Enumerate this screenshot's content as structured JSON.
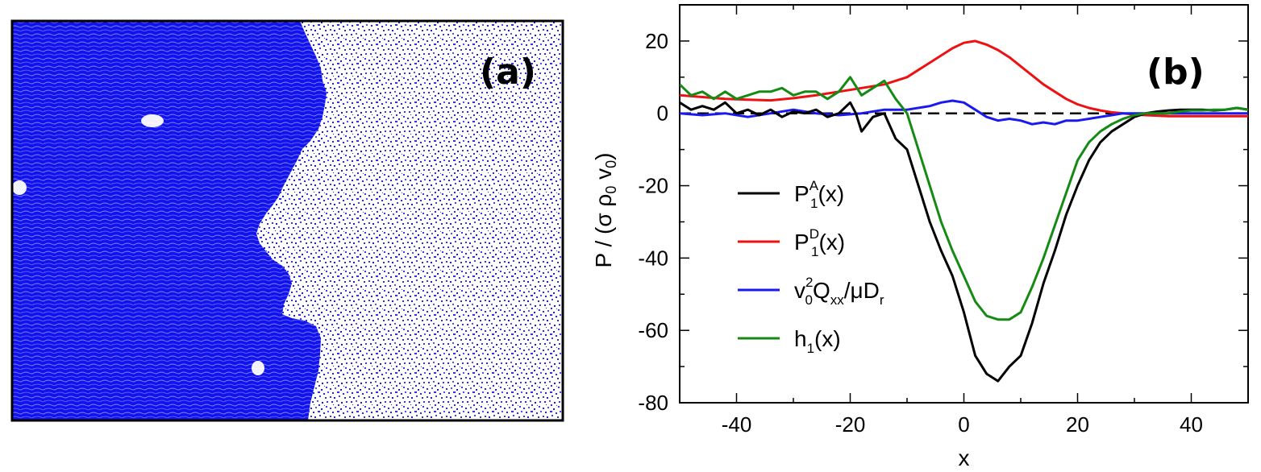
{
  "panel_a": {
    "label": "(a)",
    "dense_color": "#1010ee",
    "background_color": "#ffffff"
  },
  "panel_b": {
    "label": "(b)"
  },
  "chart_data": {
    "type": "line",
    "xlabel": "x",
    "ylabel": "P / (σ ρ0 v0)",
    "ylabel_parts": {
      "main": "P / (σ ρ",
      "sub1": "0",
      "mid": " v",
      "sub2": "0",
      "end": ")"
    },
    "xlim": [
      -50,
      50
    ],
    "ylim": [
      -80,
      30
    ],
    "x_ticks": [
      -40,
      -20,
      0,
      20,
      40
    ],
    "y_ticks": [
      20,
      0,
      -20,
      -40,
      -60,
      -80
    ],
    "x_tick_labels": [
      "-40",
      "-20",
      "0",
      "20",
      "40"
    ],
    "y_tick_labels": [
      "20",
      "0",
      "-20",
      "-40",
      "-60",
      "-80"
    ],
    "reference_line": {
      "y": 0,
      "style": "dashed",
      "color": "#000000"
    },
    "legend": {
      "position": "center-left"
    },
    "series": [
      {
        "name": "P1A(x)",
        "legend": {
          "base": "P",
          "sub": "1",
          "sup": "A",
          "tail": "(x)"
        },
        "color": "#000000",
        "x": [
          -50,
          -48,
          -46,
          -44,
          -42,
          -40,
          -38,
          -36,
          -34,
          -32,
          -30,
          -28,
          -26,
          -24,
          -22,
          -20,
          -19,
          -18,
          -16,
          -14,
          -12,
          -10,
          -8,
          -6,
          -4,
          -2,
          0,
          2,
          4,
          6,
          8,
          10,
          12,
          14,
          16,
          18,
          20,
          22,
          24,
          26,
          28,
          30,
          32,
          34,
          36,
          38,
          40,
          42,
          44,
          46,
          48,
          50
        ],
        "y": [
          3,
          1,
          2,
          1,
          3,
          0,
          1,
          -0.5,
          1,
          -1,
          0.5,
          0,
          1,
          -1,
          0,
          3,
          0,
          -5,
          -1,
          0,
          -7,
          -10,
          -20,
          -30,
          -38,
          -45,
          -55,
          -67,
          -72,
          -74,
          -70,
          -67,
          -58,
          -47,
          -38,
          -28,
          -20,
          -13,
          -8,
          -5,
          -3,
          -1,
          0,
          0.5,
          0.8,
          1,
          1,
          1,
          0.8,
          1,
          1.5,
          1
        ]
      },
      {
        "name": "P1D(x)",
        "legend": {
          "base": "P",
          "sub": "1",
          "sup": "D",
          "tail": "(x)"
        },
        "color": "#ee1111",
        "x": [
          -50,
          -46,
          -42,
          -38,
          -34,
          -30,
          -26,
          -22,
          -18,
          -14,
          -10,
          -8,
          -6,
          -4,
          -2,
          0,
          2,
          4,
          6,
          8,
          10,
          12,
          14,
          16,
          18,
          20,
          22,
          24,
          26,
          28,
          30,
          32,
          36,
          40,
          45,
          50
        ],
        "y": [
          5,
          4.5,
          4,
          3.8,
          3.6,
          4.2,
          5,
          6,
          7,
          8,
          10,
          12,
          14,
          16,
          18,
          19.5,
          20,
          19,
          17.5,
          15.5,
          13,
          10.5,
          8,
          6,
          4,
          2.5,
          1.5,
          0.8,
          0.3,
          0,
          -0.3,
          -0.5,
          -0.8,
          -0.8,
          -0.8,
          -0.8
        ]
      },
      {
        "name": "v0²Qxx/μDr",
        "legend": {
          "base": "v",
          "sub": "0",
          "sup": "2",
          "tail": "Q",
          "sub2": "xx",
          "tail2": "/μD",
          "sub3": "r"
        },
        "color": "#1a1aee",
        "x": [
          -50,
          -46,
          -42,
          -38,
          -34,
          -30,
          -26,
          -22,
          -18,
          -14,
          -10,
          -6,
          -4,
          -2,
          0,
          2,
          4,
          6,
          8,
          10,
          12,
          14,
          16,
          18,
          20,
          22,
          24,
          26,
          28,
          30,
          32,
          36,
          40,
          44,
          48,
          50
        ],
        "y": [
          0,
          -0.5,
          0,
          -1,
          0,
          1,
          0,
          -0.5,
          0,
          1,
          1,
          2,
          3,
          3.5,
          3,
          1,
          -1,
          -2,
          -1.5,
          -2,
          -3,
          -2.5,
          -3,
          -2,
          -2,
          -1.5,
          -1,
          -0.5,
          0,
          0,
          0,
          0,
          0,
          0,
          0,
          0
        ]
      },
      {
        "name": "h1(x)",
        "legend": {
          "base": "h",
          "sub": "1",
          "sup": "",
          "tail": "(x)"
        },
        "color": "#158a15",
        "x": [
          -50,
          -48,
          -46,
          -44,
          -42,
          -40,
          -38,
          -36,
          -34,
          -32,
          -30,
          -28,
          -26,
          -24,
          -22,
          -20,
          -18,
          -16,
          -14,
          -12,
          -10,
          -8,
          -6,
          -4,
          -2,
          0,
          2,
          4,
          6,
          8,
          10,
          12,
          14,
          16,
          18,
          20,
          22,
          24,
          26,
          28,
          30,
          32,
          34,
          36,
          38,
          40,
          42,
          44,
          46,
          48,
          50
        ],
        "y": [
          8,
          5,
          6,
          4,
          6,
          4,
          5,
          6,
          6,
          7,
          5,
          6,
          6,
          4,
          6,
          10,
          5,
          7,
          9,
          4,
          0,
          -10,
          -20,
          -30,
          -38,
          -45,
          -52,
          -56,
          -57,
          -57,
          -55,
          -48,
          -40,
          -31,
          -22,
          -13,
          -8,
          -5,
          -3,
          -1.5,
          -0.5,
          0,
          0,
          0,
          0.5,
          0.8,
          0.8,
          1,
          1,
          1.5,
          1
        ]
      }
    ]
  }
}
